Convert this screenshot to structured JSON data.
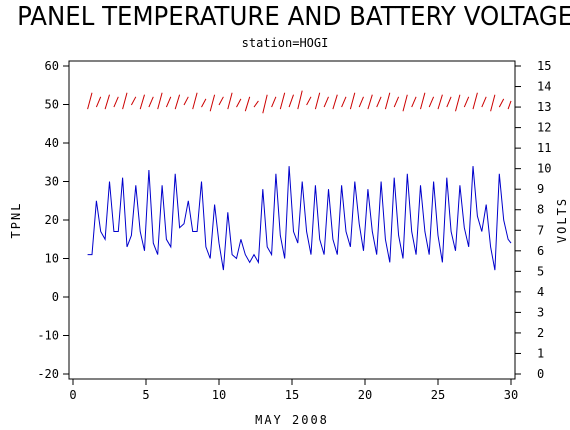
{
  "chart_data": {
    "type": "line",
    "title": "PANEL TEMPERATURE AND BATTERY VOLTAGE",
    "subtitle": "station=HOGI",
    "xlabel": "MAY 2008",
    "ylabel_left": "TPNL",
    "ylabel_right": "VOLTS",
    "xlim": [
      0,
      30
    ],
    "ylim_left": [
      -20,
      60
    ],
    "ylim_right": [
      0,
      15
    ],
    "x_ticks": [
      0,
      5,
      10,
      15,
      20,
      25,
      30
    ],
    "y_left_ticks": [
      -20,
      -10,
      0,
      10,
      20,
      30,
      40,
      50,
      60
    ],
    "y_right_ticks": [
      0,
      1,
      2,
      3,
      4,
      5,
      6,
      7,
      8,
      9,
      10,
      11,
      12,
      13,
      14,
      15
    ],
    "series": [
      {
        "axis": "left",
        "color": "#0000cc",
        "x": [
          1.0,
          1.3,
          1.6,
          1.9,
          2.2,
          2.5,
          2.8,
          3.1,
          3.4,
          3.7,
          4.0,
          4.3,
          4.6,
          4.9,
          5.2,
          5.5,
          5.8,
          6.1,
          6.4,
          6.7,
          7.0,
          7.3,
          7.6,
          7.9,
          8.2,
          8.5,
          8.8,
          9.1,
          9.4,
          9.7,
          10.0,
          10.3,
          10.6,
          10.9,
          11.2,
          11.5,
          11.8,
          12.1,
          12.4,
          12.7,
          13.0,
          13.3,
          13.6,
          13.9,
          14.2,
          14.5,
          14.8,
          15.1,
          15.4,
          15.7,
          16.0,
          16.3,
          16.6,
          16.9,
          17.2,
          17.5,
          17.8,
          18.1,
          18.4,
          18.7,
          19.0,
          19.3,
          19.6,
          19.9,
          20.2,
          20.5,
          20.8,
          21.1,
          21.4,
          21.7,
          22.0,
          22.3,
          22.6,
          22.9,
          23.2,
          23.5,
          23.8,
          24.1,
          24.4,
          24.7,
          25.0,
          25.3,
          25.6,
          25.9,
          26.2,
          26.5,
          26.8,
          27.1,
          27.4,
          27.7,
          28.0,
          28.3,
          28.6,
          28.9,
          29.2,
          29.5,
          29.8,
          30.0
        ],
        "values": [
          11,
          11,
          25,
          17,
          15,
          30,
          17,
          17,
          31,
          13,
          16,
          29,
          17,
          12,
          33,
          14,
          11,
          29,
          15,
          13,
          32,
          18,
          19,
          25,
          17,
          17,
          30,
          13,
          10,
          24,
          14,
          7,
          22,
          11,
          10,
          15,
          11,
          9,
          11,
          9,
          28,
          13,
          11,
          32,
          16,
          10,
          34,
          17,
          14,
          30,
          17,
          11,
          29,
          15,
          11,
          28,
          15,
          11,
          29,
          17,
          13,
          30,
          19,
          12,
          28,
          17,
          11,
          30,
          15,
          9,
          31,
          16,
          10,
          32,
          17,
          11,
          29,
          17,
          11,
          30,
          16,
          9,
          31,
          17,
          12,
          29,
          18,
          13,
          34,
          21,
          17,
          24,
          13,
          7,
          32,
          20,
          15,
          14
        ]
      },
      {
        "axis": "right",
        "color": "#cc0000",
        "x": [
          1.0,
          1.3,
          1.6,
          1.9,
          2.2,
          2.5,
          2.8,
          3.1,
          3.4,
          3.7,
          4.0,
          4.3,
          4.6,
          4.9,
          5.2,
          5.5,
          5.8,
          6.1,
          6.4,
          6.7,
          7.0,
          7.3,
          7.6,
          7.9,
          8.2,
          8.5,
          8.8,
          9.1,
          9.4,
          9.7,
          10.0,
          10.3,
          10.6,
          10.9,
          11.2,
          11.5,
          11.8,
          12.1,
          12.4,
          12.7,
          13.0,
          13.3,
          13.6,
          13.9,
          14.2,
          14.5,
          14.8,
          15.1,
          15.4,
          15.7,
          16.0,
          16.3,
          16.6,
          16.9,
          17.2,
          17.5,
          17.8,
          18.1,
          18.4,
          18.7,
          19.0,
          19.3,
          19.6,
          19.9,
          20.2,
          20.5,
          20.8,
          21.1,
          21.4,
          21.7,
          22.0,
          22.3,
          22.6,
          22.9,
          23.2,
          23.5,
          23.8,
          24.1,
          24.4,
          24.7,
          25.0,
          25.3,
          25.6,
          25.9,
          26.2,
          26.5,
          26.8,
          27.1,
          27.4,
          27.7,
          28.0,
          28.3,
          28.6,
          28.9,
          29.2,
          29.5,
          29.8,
          30.0
        ],
        "values": [
          12.9,
          13.7,
          13.0,
          13.5,
          12.9,
          13.6,
          13.0,
          13.5,
          12.9,
          13.7,
          13.1,
          13.5,
          12.9,
          13.6,
          13.0,
          13.5,
          12.9,
          13.7,
          13.0,
          13.5,
          12.9,
          13.6,
          13.1,
          13.5,
          12.9,
          13.7,
          13.0,
          13.4,
          12.8,
          13.6,
          13.1,
          13.5,
          12.9,
          13.7,
          13.0,
          13.4,
          12.8,
          13.5,
          13.0,
          13.3,
          12.7,
          13.6,
          13.0,
          13.5,
          12.9,
          13.7,
          13.0,
          13.6,
          12.9,
          13.8,
          13.1,
          13.5,
          12.9,
          13.7,
          13.0,
          13.5,
          12.9,
          13.6,
          13.0,
          13.5,
          12.9,
          13.7,
          13.0,
          13.5,
          12.9,
          13.6,
          13.0,
          13.5,
          12.9,
          13.7,
          13.0,
          13.5,
          12.8,
          13.6,
          13.0,
          13.5,
          12.9,
          13.7,
          13.0,
          13.5,
          12.9,
          13.6,
          13.0,
          13.5,
          12.8,
          13.6,
          13.0,
          13.5,
          12.9,
          13.7,
          13.0,
          13.5,
          12.8,
          13.6,
          13.0,
          13.4,
          12.9,
          13.3
        ]
      }
    ]
  }
}
